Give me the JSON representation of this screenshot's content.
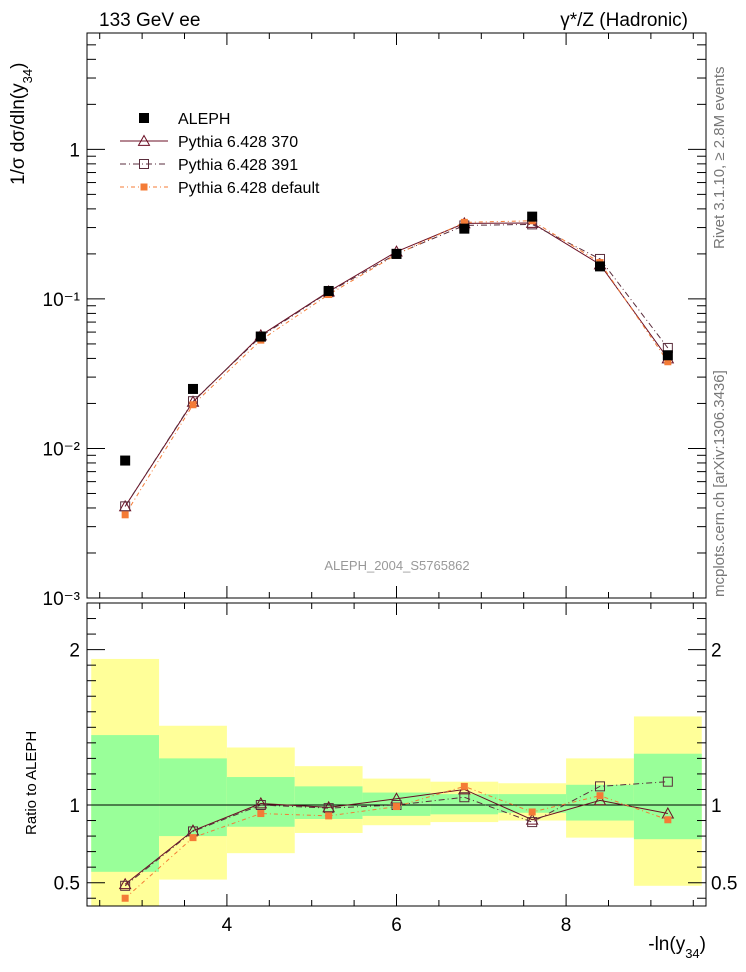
{
  "header": {
    "left": "133 GeV ee",
    "right": "γ*/Z (Hadronic)"
  },
  "side_text": {
    "rivet": "Rivet 3.1.10, ≥ 2.8M events",
    "mcplots": "mcplots.cern.ch [arXiv:1306.3436]"
  },
  "watermark": "ALEPH_2004_S5765862",
  "chart_data": [
    {
      "type": "scatter",
      "panel": "main",
      "ylabel": "1/σ dσ/dln(y34)",
      "yscale": "log",
      "ylim": [
        0.001,
        6.0
      ],
      "xlim": [
        2.35,
        9.65
      ],
      "ytick_labels": [
        "10⁻³",
        "10⁻²",
        "10⁻¹",
        "1"
      ],
      "legend": {
        "placement": "top-left",
        "entries": [
          "ALEPH",
          "Pythia 6.428 370",
          "Pythia 6.428 391",
          "Pythia 6.428 default"
        ]
      },
      "x": [
        2.8,
        3.6,
        4.4,
        5.2,
        6.0,
        6.8,
        7.6,
        8.4,
        9.2
      ],
      "series": [
        {
          "name": "ALEPH",
          "marker": "filled-square",
          "color": "#000000",
          "values": [
            0.0083,
            0.025,
            0.056,
            0.113,
            0.2,
            0.295,
            0.355,
            0.165,
            0.042
          ]
        },
        {
          "name": "Pythia 6.428 370",
          "marker": "open-triangle",
          "color": "#6b0f24",
          "line": "solid",
          "values": [
            0.0041,
            0.0205,
            0.057,
            0.112,
            0.207,
            0.32,
            0.322,
            0.17,
            0.04
          ]
        },
        {
          "name": "Pythia 6.428 391",
          "marker": "open-square",
          "color": "#5a2d3c",
          "line": "dash-dot",
          "values": [
            0.0041,
            0.0207,
            0.056,
            0.111,
            0.2,
            0.31,
            0.315,
            0.185,
            0.047
          ]
        },
        {
          "name": "Pythia 6.428 default",
          "marker": "filled-square",
          "color": "#f47b36",
          "line": "dash-dot",
          "values": [
            0.0036,
            0.0196,
            0.053,
            0.107,
            0.198,
            0.325,
            0.333,
            0.175,
            0.038
          ]
        }
      ]
    },
    {
      "type": "line",
      "panel": "ratio",
      "ylabel": "Ratio to ALEPH",
      "xlabel": "-ln(y34)",
      "ylim": [
        0.35,
        2.3
      ],
      "xlim": [
        2.35,
        9.65
      ],
      "xtick_labels": [
        "4",
        "6",
        "8"
      ],
      "ytick_labels": [
        "0.5",
        "1",
        "2"
      ],
      "x": [
        2.8,
        3.6,
        4.4,
        5.2,
        6.0,
        6.8,
        7.6,
        8.4,
        9.2
      ],
      "bin_edges": [
        2.4,
        3.2,
        4.0,
        4.8,
        5.6,
        6.4,
        7.2,
        8.0,
        8.8,
        9.6
      ],
      "band_green": {
        "low": [
          0.57,
          0.8,
          0.86,
          0.91,
          0.93,
          0.94,
          0.95,
          0.9,
          0.78
        ],
        "high": [
          1.45,
          1.3,
          1.18,
          1.12,
          1.08,
          1.07,
          1.07,
          1.13,
          1.33
        ]
      },
      "band_yellow": {
        "low": [
          0.35,
          0.52,
          0.69,
          0.82,
          0.87,
          0.89,
          0.9,
          0.79,
          0.48
        ],
        "high": [
          1.94,
          1.51,
          1.37,
          1.25,
          1.17,
          1.15,
          1.14,
          1.3,
          1.57
        ]
      },
      "series": [
        {
          "name": "Pythia 6.428 370",
          "values": [
            0.49,
            0.835,
            1.01,
            0.985,
            1.04,
            1.1,
            0.905,
            1.03,
            0.945
          ]
        },
        {
          "name": "Pythia 6.428 391",
          "values": [
            0.48,
            0.83,
            1.0,
            0.98,
            1.0,
            1.05,
            0.89,
            1.12,
            1.15
          ]
        },
        {
          "name": "Pythia 6.428 default",
          "values": [
            0.4,
            0.79,
            0.945,
            0.93,
            0.99,
            1.12,
            0.955,
            1.06,
            0.905
          ]
        }
      ]
    }
  ]
}
